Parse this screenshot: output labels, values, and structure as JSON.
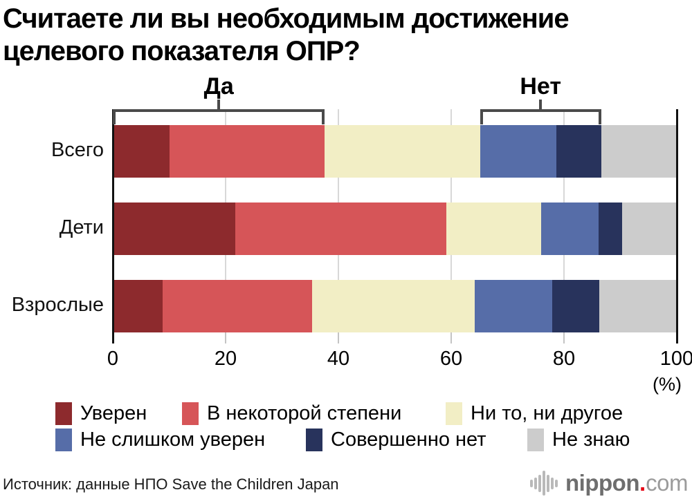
{
  "title": {
    "line1": "Считаете ли вы необходимым достижение",
    "line2": "целевого показателя ОПР?"
  },
  "chart_data": {
    "type": "bar",
    "stacked": true,
    "orientation": "horizontal",
    "unit": "%",
    "title": "Считаете ли вы необходимым достижение целевого показателя ОПР?",
    "categories": [
      "Всего",
      "Дети",
      "Взрослые"
    ],
    "series": [
      {
        "name": "Уверен",
        "color": "#8D2A2D",
        "values": [
          10.1,
          21.7,
          8.8
        ]
      },
      {
        "name": "В некоторой степени",
        "color": "#D65558",
        "values": [
          27.5,
          37.4,
          26.5
        ]
      },
      {
        "name": "Ни то, ни другое",
        "color": "#F2EEC5",
        "values": [
          27.5,
          16.8,
          28.9
        ]
      },
      {
        "name": "Не слишком уверен",
        "color": "#566DA8",
        "values": [
          13.5,
          10.3,
          13.7
        ]
      },
      {
        "name": "Совершенно нет",
        "color": "#28335C",
        "values": [
          8.0,
          4.1,
          8.4
        ]
      },
      {
        "name": "Не знаю",
        "color": "#CCCCCC",
        "values": [
          13.4,
          9.7,
          13.7
        ]
      }
    ],
    "x_axis": {
      "range": [
        0,
        100
      ],
      "ticks": [
        0,
        20,
        40,
        60,
        80,
        100
      ],
      "gridlines": [
        20,
        40,
        60,
        80
      ],
      "label": "(%)"
    },
    "annotations": [
      {
        "label": "Да",
        "from": 0.0,
        "to": 37.6
      },
      {
        "label": "Нет",
        "from": 65.1,
        "to": 86.6
      }
    ],
    "legend_position": "bottom",
    "legend_rows": [
      [
        0,
        1,
        2
      ],
      [
        3,
        4,
        5
      ]
    ]
  },
  "footer": {
    "source": "Источник: данные НПО Save the Children Japan",
    "logo": {
      "text_bold": "nippon",
      "dot": ".",
      "text_light": "com"
    }
  }
}
